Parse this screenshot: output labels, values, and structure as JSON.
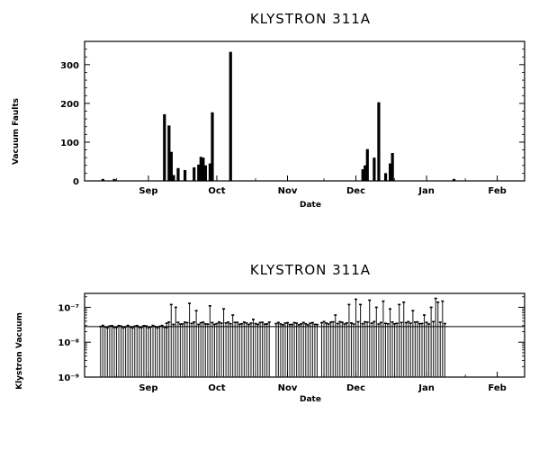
{
  "chart_data": [
    {
      "type": "bar",
      "title": "KLYSTRON 311A",
      "xlabel": "Date",
      "ylabel": "Vacuum Faults",
      "ylim": [
        0,
        360
      ],
      "yticks": [
        "0",
        "100",
        "200",
        "300"
      ],
      "ytick_values": [
        0,
        100,
        200,
        300
      ],
      "xticks": [
        "Sep",
        "Oct",
        "Nov",
        "Dec",
        "Jan",
        "Feb"
      ],
      "xtick_values": [
        "2000-09-15",
        "2000-10-15",
        "2000-11-15",
        "2000-12-15",
        "2001-01-15",
        "2001-02-15"
      ],
      "xlim": [
        "2000-08-18",
        "2001-02-27"
      ],
      "x": [
        "2000-08-26",
        "2000-08-31",
        "2000-09-22",
        "2000-09-24",
        "2000-09-25",
        "2000-09-26",
        "2000-09-28",
        "2000-10-01",
        "2000-10-05",
        "2000-10-07",
        "2000-10-08",
        "2000-10-09",
        "2000-10-10",
        "2000-10-12",
        "2000-10-13",
        "2000-10-21",
        "2000-12-18",
        "2000-12-19",
        "2000-12-20",
        "2000-12-23",
        "2000-12-25",
        "2000-12-28",
        "2000-12-30",
        "2000-12-31",
        "2001-01-27"
      ],
      "values": [
        5,
        5,
        172,
        143,
        75,
        15,
        33,
        28,
        35,
        42,
        62,
        60,
        40,
        45,
        177,
        333,
        30,
        40,
        82,
        60,
        203,
        20,
        45,
        72,
        5
      ]
    },
    {
      "type": "bar",
      "title": "KLYSTRON 311A",
      "xlabel": "Date",
      "ylabel": "Klystron Vacuum",
      "yscale": "log",
      "ylim": [
        1e-09,
        2.5e-07
      ],
      "yticks": [
        "10⁻⁹",
        "10⁻⁸",
        "10⁻⁷"
      ],
      "ytick_values": [
        1e-09,
        1e-08,
        1e-07
      ],
      "xticks": [
        "Sep",
        "Oct",
        "Nov",
        "Dec",
        "Jan",
        "Feb"
      ],
      "xtick_values": [
        "2000-09-15",
        "2000-10-15",
        "2000-11-15",
        "2000-12-15",
        "2001-01-15",
        "2001-02-15"
      ],
      "xlim": [
        "2000-08-18",
        "2001-02-27"
      ],
      "reference_line": 2.8e-08,
      "segments": [
        {
          "start": "2000-08-25",
          "end": "2000-09-23",
          "baseline": 2.8e-08
        },
        {
          "start": "2000-09-23",
          "end": "2000-11-07",
          "baseline": 3.5e-08
        },
        {
          "start": "2000-11-10",
          "end": "2000-11-28",
          "baseline": 3.4e-08
        },
        {
          "start": "2000-11-30",
          "end": "2001-01-23",
          "baseline": 3.6e-08
        }
      ],
      "peaks": [
        {
          "x": "2000-09-25",
          "y": 1.2e-07
        },
        {
          "x": "2000-09-27",
          "y": 1e-07
        },
        {
          "x": "2000-10-03",
          "y": 1.3e-07
        },
        {
          "x": "2000-10-06",
          "y": 8e-08
        },
        {
          "x": "2000-10-12",
          "y": 1.1e-07
        },
        {
          "x": "2000-10-18",
          "y": 9e-08
        },
        {
          "x": "2000-10-22",
          "y": 6e-08
        },
        {
          "x": "2000-10-31",
          "y": 4.5e-08
        },
        {
          "x": "2000-12-06",
          "y": 6e-08
        },
        {
          "x": "2000-12-12",
          "y": 1.2e-07
        },
        {
          "x": "2000-12-15",
          "y": 1.7e-07
        },
        {
          "x": "2000-12-17",
          "y": 1.2e-07
        },
        {
          "x": "2000-12-21",
          "y": 1.6e-07
        },
        {
          "x": "2000-12-24",
          "y": 1e-07
        },
        {
          "x": "2000-12-27",
          "y": 1.5e-07
        },
        {
          "x": "2000-12-30",
          "y": 9e-08
        },
        {
          "x": "2001-01-03",
          "y": 1.2e-07
        },
        {
          "x": "2001-01-05",
          "y": 1.4e-07
        },
        {
          "x": "2001-01-09",
          "y": 8e-08
        },
        {
          "x": "2001-01-14",
          "y": 6e-08
        },
        {
          "x": "2001-01-17",
          "y": 1e-07
        },
        {
          "x": "2001-01-19",
          "y": 1.8e-07
        },
        {
          "x": "2001-01-20",
          "y": 1.4e-07
        },
        {
          "x": "2001-01-22",
          "y": 1.5e-07
        }
      ]
    }
  ]
}
